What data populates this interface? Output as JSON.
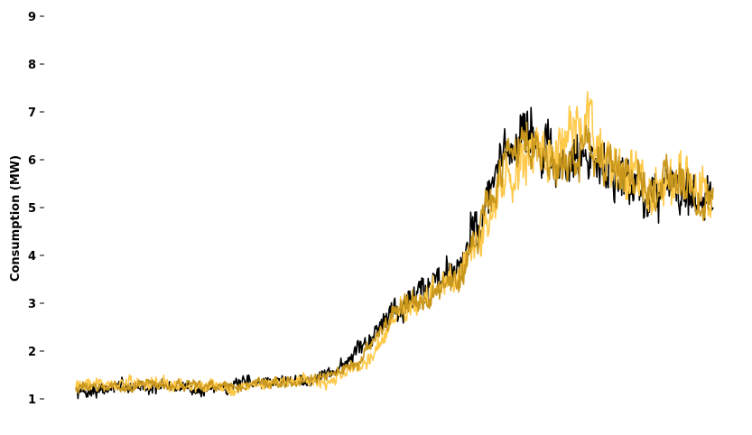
{
  "chart_data": {
    "type": "line",
    "title": "",
    "xlabel": "",
    "ylabel": "Consumption (MW)",
    "ylim": [
      0.85,
      9.0
    ],
    "yticks": [
      1,
      2,
      3,
      4,
      5,
      6,
      7,
      8,
      9
    ],
    "grid": false,
    "legend": "none",
    "x_range": [
      0,
      1
    ],
    "series": [
      {
        "color": "#000000",
        "x": [
          0.0,
          0.05,
          0.1,
          0.15,
          0.2,
          0.25,
          0.3,
          0.35,
          0.4,
          0.45,
          0.5,
          0.55,
          0.6,
          0.65,
          0.7,
          0.75,
          0.8,
          0.85,
          0.9,
          0.95,
          1.0
        ],
        "values": [
          1.15,
          1.22,
          1.28,
          1.25,
          1.2,
          1.28,
          1.35,
          1.4,
          1.55,
          2.0,
          3.0,
          3.3,
          3.9,
          5.3,
          6.8,
          5.8,
          6.1,
          5.8,
          5.2,
          5.6,
          5.1
        ],
        "noise": 0.3,
        "samples": 900,
        "seed": 7
      },
      {
        "color": "#ffc94a",
        "x": [
          0.0,
          0.05,
          0.1,
          0.15,
          0.2,
          0.25,
          0.3,
          0.35,
          0.4,
          0.45,
          0.5,
          0.55,
          0.6,
          0.65,
          0.7,
          0.75,
          0.8,
          0.85,
          0.9,
          0.95,
          1.0
        ],
        "values": [
          1.35,
          1.3,
          1.32,
          1.3,
          1.25,
          1.25,
          1.35,
          1.4,
          1.35,
          1.7,
          2.6,
          3.1,
          3.4,
          4.8,
          6.2,
          6.0,
          6.5,
          5.9,
          5.5,
          5.8,
          5.2
        ],
        "noise": 0.3,
        "samples": 900,
        "seed": 19
      },
      {
        "color": "#c9971c",
        "x": [
          0.0,
          0.05,
          0.1,
          0.15,
          0.2,
          0.25,
          0.3,
          0.35,
          0.4,
          0.45,
          0.5,
          0.55,
          0.6,
          0.65,
          0.7,
          0.75,
          0.8,
          0.85,
          0.9,
          0.95,
          1.0
        ],
        "values": [
          1.25,
          1.25,
          1.3,
          1.28,
          1.22,
          1.25,
          1.35,
          1.4,
          1.45,
          1.85,
          2.8,
          3.2,
          3.65,
          5.05,
          6.5,
          5.9,
          6.3,
          5.85,
          5.35,
          5.7,
          5.15
        ],
        "noise": 0.22,
        "samples": 900,
        "seed": 31
      }
    ]
  }
}
